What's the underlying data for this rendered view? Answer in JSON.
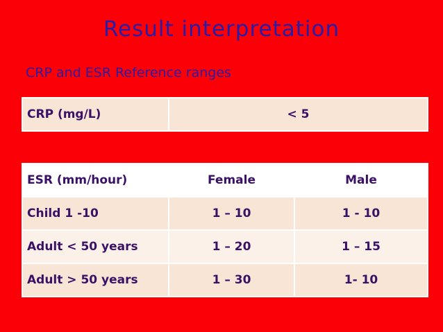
{
  "title": "Result interpretation",
  "subtitle": "CRP and ESR Reference ranges",
  "crp_table": {
    "label": "CRP (mg/L)",
    "value": "< 5"
  },
  "esr_table": {
    "headers": [
      "ESR (mm/hour)",
      "Female",
      "Male"
    ],
    "rows": [
      [
        "Child 1 -10",
        "1 – 10",
        "1 - 10"
      ],
      [
        "Adult < 50 years",
        "1 – 20",
        "1 – 15"
      ],
      [
        "Adult > 50 years",
        "1 – 30",
        "1- 10"
      ]
    ]
  }
}
